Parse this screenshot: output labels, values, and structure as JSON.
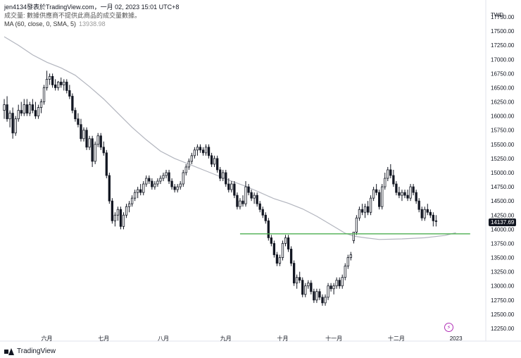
{
  "header": {
    "publisher_line": "jen4134發表於TradingView.com，一月 02, 2023 15:01 UTC+8",
    "volume_note": "成交量: 數據供應商不提供此商品的成交量數據。",
    "ma_label": "MA (60, close, 0, SMA, 5)",
    "ma_value": "13938.98"
  },
  "axis": {
    "currency": "TWD",
    "last_price": "14137.69"
  },
  "footer": {
    "brand": "TradingView"
  },
  "colors": {
    "candle": "#131722",
    "ma_line": "#b2b5be",
    "support_line": "#4caf50",
    "flash_icon": "#b02fb6"
  },
  "chart_data": {
    "type": "candlestick",
    "title": "",
    "xlabel": "",
    "ylabel": "TWD",
    "ylim": [
      12150,
      17800
    ],
    "y_ticks": [
      12250,
      12500,
      12750,
      13000,
      13250,
      13500,
      13750,
      14000,
      14250,
      14500,
      14750,
      15000,
      15250,
      15500,
      15750,
      16000,
      16250,
      16500,
      16750,
      17000,
      17250,
      17500,
      17750
    ],
    "y_tick_labels": [
      "12250.00",
      "12500.00",
      "12750.00",
      "13000.00",
      "13250.00",
      "13500.00",
      "13750.00",
      "14000.00",
      "14250.00",
      "14500.00",
      "14750.00",
      "15000.00",
      "15250.00",
      "15500.00",
      "15750.00",
      "16000.00",
      "16250.00",
      "16500.00",
      "16750.00",
      "17000.00",
      "17250.00",
      "17500.00",
      "17750.00"
    ],
    "x_months": [
      {
        "label": "六月",
        "index": 15
      },
      {
        "label": "七月",
        "index": 35
      },
      {
        "label": "八月",
        "index": 56
      },
      {
        "label": "九月",
        "index": 78
      },
      {
        "label": "十月",
        "index": 98
      },
      {
        "label": "十一月",
        "index": 116
      },
      {
        "label": "十二月",
        "index": 138
      },
      {
        "label": "2023",
        "index": 159
      }
    ],
    "bar_count": 170,
    "support_level": 13920,
    "support_start_index": 83,
    "candles": [
      {
        "o": 16100,
        "h": 16300,
        "l": 15950,
        "c": 16200
      },
      {
        "o": 16200,
        "h": 16350,
        "l": 15900,
        "c": 15950
      },
      {
        "o": 15950,
        "h": 16100,
        "l": 15800,
        "c": 16050
      },
      {
        "o": 16050,
        "h": 16150,
        "l": 15600,
        "c": 15700
      },
      {
        "o": 15700,
        "h": 16000,
        "l": 15650,
        "c": 15950
      },
      {
        "o": 15950,
        "h": 16200,
        "l": 15900,
        "c": 16100
      },
      {
        "o": 16100,
        "h": 16250,
        "l": 16000,
        "c": 16050
      },
      {
        "o": 16050,
        "h": 16300,
        "l": 16000,
        "c": 16200
      },
      {
        "o": 16200,
        "h": 16300,
        "l": 16000,
        "c": 16050
      },
      {
        "o": 16050,
        "h": 16250,
        "l": 16000,
        "c": 16200
      },
      {
        "o": 16200,
        "h": 16300,
        "l": 16050,
        "c": 16100
      },
      {
        "o": 16100,
        "h": 16250,
        "l": 15950,
        "c": 16000
      },
      {
        "o": 16000,
        "h": 16200,
        "l": 15950,
        "c": 16150
      },
      {
        "o": 16150,
        "h": 16300,
        "l": 16050,
        "c": 16250
      },
      {
        "o": 16250,
        "h": 16550,
        "l": 16200,
        "c": 16500
      },
      {
        "o": 16500,
        "h": 16800,
        "l": 16450,
        "c": 16650
      },
      {
        "o": 16650,
        "h": 16750,
        "l": 16550,
        "c": 16700
      },
      {
        "o": 16700,
        "h": 16750,
        "l": 16500,
        "c": 16550
      },
      {
        "o": 16550,
        "h": 16650,
        "l": 16450,
        "c": 16500
      },
      {
        "o": 16500,
        "h": 16620,
        "l": 16450,
        "c": 16600
      },
      {
        "o": 16600,
        "h": 16680,
        "l": 16500,
        "c": 16550
      },
      {
        "o": 16550,
        "h": 16650,
        "l": 16450,
        "c": 16600
      },
      {
        "o": 16600,
        "h": 16650,
        "l": 16400,
        "c": 16450
      },
      {
        "o": 16450,
        "h": 16550,
        "l": 16300,
        "c": 16350
      },
      {
        "o": 16350,
        "h": 16400,
        "l": 16050,
        "c": 16100
      },
      {
        "o": 16100,
        "h": 16150,
        "l": 15900,
        "c": 15950
      },
      {
        "o": 15950,
        "h": 16050,
        "l": 15800,
        "c": 15850
      },
      {
        "o": 15850,
        "h": 15950,
        "l": 15550,
        "c": 15600
      },
      {
        "o": 15600,
        "h": 15800,
        "l": 15550,
        "c": 15750
      },
      {
        "o": 15750,
        "h": 15800,
        "l": 15400,
        "c": 15450
      },
      {
        "o": 15450,
        "h": 15650,
        "l": 15400,
        "c": 15600
      },
      {
        "o": 15600,
        "h": 15650,
        "l": 15100,
        "c": 15200
      },
      {
        "o": 15200,
        "h": 15550,
        "l": 15150,
        "c": 15500
      },
      {
        "o": 15500,
        "h": 15700,
        "l": 15450,
        "c": 15650
      },
      {
        "o": 15650,
        "h": 15700,
        "l": 15400,
        "c": 15450
      },
      {
        "o": 15450,
        "h": 15550,
        "l": 15300,
        "c": 15350
      },
      {
        "o": 15350,
        "h": 15400,
        "l": 14900,
        "c": 14950
      },
      {
        "o": 14950,
        "h": 15000,
        "l": 14450,
        "c": 14500
      },
      {
        "o": 14500,
        "h": 14550,
        "l": 14100,
        "c": 14150
      },
      {
        "o": 14150,
        "h": 14300,
        "l": 14050,
        "c": 14250
      },
      {
        "o": 14250,
        "h": 14400,
        "l": 14150,
        "c": 14350
      },
      {
        "o": 14350,
        "h": 14400,
        "l": 14000,
        "c": 14050
      },
      {
        "o": 14050,
        "h": 14300,
        "l": 14000,
        "c": 14250
      },
      {
        "o": 14250,
        "h": 14450,
        "l": 14200,
        "c": 14400
      },
      {
        "o": 14400,
        "h": 14500,
        "l": 14300,
        "c": 14450
      },
      {
        "o": 14450,
        "h": 14600,
        "l": 14400,
        "c": 14550
      },
      {
        "o": 14550,
        "h": 14700,
        "l": 14500,
        "c": 14650
      },
      {
        "o": 14650,
        "h": 14750,
        "l": 14550,
        "c": 14700
      },
      {
        "o": 14700,
        "h": 14800,
        "l": 14600,
        "c": 14650
      },
      {
        "o": 14650,
        "h": 14850,
        "l": 14600,
        "c": 14800
      },
      {
        "o": 14800,
        "h": 14950,
        "l": 14750,
        "c": 14900
      },
      {
        "o": 14900,
        "h": 14950,
        "l": 14800,
        "c": 14850
      },
      {
        "o": 14850,
        "h": 14900,
        "l": 14700,
        "c": 14750
      },
      {
        "o": 14750,
        "h": 14850,
        "l": 14700,
        "c": 14800
      },
      {
        "o": 14800,
        "h": 14900,
        "l": 14750,
        "c": 14850
      },
      {
        "o": 14850,
        "h": 14950,
        "l": 14800,
        "c": 14900
      },
      {
        "o": 14900,
        "h": 15000,
        "l": 14850,
        "c": 14950
      },
      {
        "o": 14950,
        "h": 15050,
        "l": 14900,
        "c": 15000
      },
      {
        "o": 15000,
        "h": 15050,
        "l": 14800,
        "c": 14850
      },
      {
        "o": 14850,
        "h": 14900,
        "l": 14700,
        "c": 14750
      },
      {
        "o": 14750,
        "h": 14800,
        "l": 14650,
        "c": 14700
      },
      {
        "o": 14700,
        "h": 14800,
        "l": 14650,
        "c": 14750
      },
      {
        "o": 14750,
        "h": 14850,
        "l": 14700,
        "c": 14800
      },
      {
        "o": 14800,
        "h": 15050,
        "l": 14750,
        "c": 15000
      },
      {
        "o": 15000,
        "h": 15150,
        "l": 14950,
        "c": 15100
      },
      {
        "o": 15100,
        "h": 15250,
        "l": 15050,
        "c": 15200
      },
      {
        "o": 15200,
        "h": 15350,
        "l": 15150,
        "c": 15300
      },
      {
        "o": 15300,
        "h": 15450,
        "l": 15250,
        "c": 15400
      },
      {
        "o": 15400,
        "h": 15500,
        "l": 15300,
        "c": 15450
      },
      {
        "o": 15450,
        "h": 15500,
        "l": 15350,
        "c": 15400
      },
      {
        "o": 15400,
        "h": 15450,
        "l": 15300,
        "c": 15350
      },
      {
        "o": 15350,
        "h": 15500,
        "l": 15300,
        "c": 15450
      },
      {
        "o": 15450,
        "h": 15500,
        "l": 15250,
        "c": 15300
      },
      {
        "o": 15300,
        "h": 15350,
        "l": 15100,
        "c": 15150
      },
      {
        "o": 15150,
        "h": 15300,
        "l": 15100,
        "c": 15250
      },
      {
        "o": 15250,
        "h": 15300,
        "l": 15000,
        "c": 15050
      },
      {
        "o": 15050,
        "h": 15100,
        "l": 14850,
        "c": 14900
      },
      {
        "o": 14900,
        "h": 15050,
        "l": 14850,
        "c": 15000
      },
      {
        "o": 15000,
        "h": 15050,
        "l": 14750,
        "c": 14800
      },
      {
        "o": 14800,
        "h": 14900,
        "l": 14650,
        "c": 14700
      },
      {
        "o": 14700,
        "h": 14850,
        "l": 14650,
        "c": 14800
      },
      {
        "o": 14800,
        "h": 14850,
        "l": 14550,
        "c": 14600
      },
      {
        "o": 14600,
        "h": 14650,
        "l": 14350,
        "c": 14400
      },
      {
        "o": 14400,
        "h": 14550,
        "l": 14350,
        "c": 14500
      },
      {
        "o": 14500,
        "h": 14600,
        "l": 14400,
        "c": 14450
      },
      {
        "o": 14450,
        "h": 14850,
        "l": 14400,
        "c": 14750
      },
      {
        "o": 14750,
        "h": 14800,
        "l": 14600,
        "c": 14650
      },
      {
        "o": 14650,
        "h": 14700,
        "l": 14500,
        "c": 14550
      },
      {
        "o": 14550,
        "h": 14650,
        "l": 14450,
        "c": 14600
      },
      {
        "o": 14600,
        "h": 14650,
        "l": 14400,
        "c": 14450
      },
      {
        "o": 14450,
        "h": 14500,
        "l": 14300,
        "c": 14350
      },
      {
        "o": 14350,
        "h": 14400,
        "l": 14200,
        "c": 14250
      },
      {
        "o": 14250,
        "h": 14300,
        "l": 14100,
        "c": 14150
      },
      {
        "o": 14150,
        "h": 14200,
        "l": 13800,
        "c": 13850
      },
      {
        "o": 13850,
        "h": 13900,
        "l": 13700,
        "c": 13750
      },
      {
        "o": 13750,
        "h": 13800,
        "l": 13500,
        "c": 13550
      },
      {
        "o": 13550,
        "h": 13600,
        "l": 13350,
        "c": 13400
      },
      {
        "o": 13400,
        "h": 13550,
        "l": 13350,
        "c": 13500
      },
      {
        "o": 13500,
        "h": 13800,
        "l": 13450,
        "c": 13750
      },
      {
        "o": 13750,
        "h": 13900,
        "l": 13700,
        "c": 13850
      },
      {
        "o": 13850,
        "h": 13900,
        "l": 13600,
        "c": 13650
      },
      {
        "o": 13650,
        "h": 13700,
        "l": 13350,
        "c": 13400
      },
      {
        "o": 13400,
        "h": 13450,
        "l": 13000,
        "c": 13050
      },
      {
        "o": 13050,
        "h": 13200,
        "l": 12950,
        "c": 13150
      },
      {
        "o": 13150,
        "h": 13250,
        "l": 13050,
        "c": 13100
      },
      {
        "o": 13100,
        "h": 13150,
        "l": 12800,
        "c": 12850
      },
      {
        "o": 12850,
        "h": 13050,
        "l": 12800,
        "c": 13000
      },
      {
        "o": 13000,
        "h": 13100,
        "l": 12950,
        "c": 13050
      },
      {
        "o": 13050,
        "h": 13100,
        "l": 12850,
        "c": 12900
      },
      {
        "o": 12900,
        "h": 12950,
        "l": 12700,
        "c": 12750
      },
      {
        "o": 12750,
        "h": 12950,
        "l": 12700,
        "c": 12900
      },
      {
        "o": 12900,
        "h": 12950,
        "l": 12750,
        "c": 12800
      },
      {
        "o": 12800,
        "h": 12850,
        "l": 12650,
        "c": 12700
      },
      {
        "o": 12700,
        "h": 12850,
        "l": 12650,
        "c": 12800
      },
      {
        "o": 12800,
        "h": 13050,
        "l": 12750,
        "c": 13000
      },
      {
        "o": 13000,
        "h": 13050,
        "l": 12900,
        "c": 12950
      },
      {
        "o": 12950,
        "h": 13050,
        "l": 12850,
        "c": 13000
      },
      {
        "o": 13000,
        "h": 13150,
        "l": 12950,
        "c": 13100
      },
      {
        "o": 13100,
        "h": 13150,
        "l": 12950,
        "c": 13000
      },
      {
        "o": 13000,
        "h": 13200,
        "l": 12950,
        "c": 13150
      },
      {
        "o": 13150,
        "h": 13400,
        "l": 13100,
        "c": 13350
      },
      {
        "o": 13350,
        "h": 13550,
        "l": 13300,
        "c": 13500
      },
      {
        "o": 13500,
        "h": 13600,
        "l": 13450,
        "c": 13550
      },
      {
        "o": 13800,
        "h": 13950,
        "l": 13750,
        "c": 13950
      },
      {
        "o": 13950,
        "h": 14250,
        "l": 13900,
        "c": 14200
      },
      {
        "o": 14200,
        "h": 14400,
        "l": 14150,
        "c": 14350
      },
      {
        "o": 14350,
        "h": 14450,
        "l": 14250,
        "c": 14300
      },
      {
        "o": 14300,
        "h": 14450,
        "l": 14200,
        "c": 14400
      },
      {
        "o": 14400,
        "h": 14500,
        "l": 14250,
        "c": 14300
      },
      {
        "o": 14300,
        "h": 14600,
        "l": 14250,
        "c": 14550
      },
      {
        "o": 14550,
        "h": 14750,
        "l": 14500,
        "c": 14700
      },
      {
        "o": 14700,
        "h": 14800,
        "l": 14600,
        "c": 14650
      },
      {
        "o": 14650,
        "h": 14700,
        "l": 14350,
        "c": 14400
      },
      {
        "o": 14400,
        "h": 14800,
        "l": 14350,
        "c": 14750
      },
      {
        "o": 14750,
        "h": 15000,
        "l": 14700,
        "c": 14900
      },
      {
        "o": 14900,
        "h": 15100,
        "l": 14850,
        "c": 15050
      },
      {
        "o": 15050,
        "h": 15150,
        "l": 14900,
        "c": 14950
      },
      {
        "o": 14950,
        "h": 15050,
        "l": 14750,
        "c": 14800
      },
      {
        "o": 14800,
        "h": 14850,
        "l": 14600,
        "c": 14650
      },
      {
        "o": 14650,
        "h": 14750,
        "l": 14550,
        "c": 14600
      },
      {
        "o": 14600,
        "h": 14700,
        "l": 14500,
        "c": 14650
      },
      {
        "o": 14650,
        "h": 14700,
        "l": 14550,
        "c": 14600
      },
      {
        "o": 14600,
        "h": 14700,
        "l": 14500,
        "c": 14550
      },
      {
        "o": 14550,
        "h": 14800,
        "l": 14500,
        "c": 14750
      },
      {
        "o": 14750,
        "h": 14800,
        "l": 14600,
        "c": 14650
      },
      {
        "o": 14650,
        "h": 14700,
        "l": 14450,
        "c": 14500
      },
      {
        "o": 14500,
        "h": 14550,
        "l": 14300,
        "c": 14350
      },
      {
        "o": 14350,
        "h": 14400,
        "l": 14150,
        "c": 14200
      },
      {
        "o": 14200,
        "h": 14400,
        "l": 14150,
        "c": 14350
      },
      {
        "o": 14350,
        "h": 14450,
        "l": 14250,
        "c": 14300
      },
      {
        "o": 14300,
        "h": 14350,
        "l": 14200,
        "c": 14250
      },
      {
        "o": 14250,
        "h": 14300,
        "l": 14050,
        "c": 14150
      },
      {
        "o": 14150,
        "h": 14250,
        "l": 14050,
        "c": 14137.69
      }
    ],
    "ma": [
      {
        "i": 0,
        "v": 17400
      },
      {
        "i": 5,
        "v": 17250
      },
      {
        "i": 10,
        "v": 17080
      },
      {
        "i": 15,
        "v": 16950
      },
      {
        "i": 20,
        "v": 16850
      },
      {
        "i": 25,
        "v": 16720
      },
      {
        "i": 30,
        "v": 16520
      },
      {
        "i": 35,
        "v": 16300
      },
      {
        "i": 40,
        "v": 16050
      },
      {
        "i": 45,
        "v": 15800
      },
      {
        "i": 50,
        "v": 15580
      },
      {
        "i": 55,
        "v": 15380
      },
      {
        "i": 60,
        "v": 15250
      },
      {
        "i": 65,
        "v": 15150
      },
      {
        "i": 70,
        "v": 15050
      },
      {
        "i": 75,
        "v": 14950
      },
      {
        "i": 80,
        "v": 14850
      },
      {
        "i": 85,
        "v": 14760
      },
      {
        "i": 90,
        "v": 14650
      },
      {
        "i": 95,
        "v": 14540
      },
      {
        "i": 100,
        "v": 14460
      },
      {
        "i": 105,
        "v": 14360
      },
      {
        "i": 110,
        "v": 14230
      },
      {
        "i": 115,
        "v": 14080
      },
      {
        "i": 120,
        "v": 13930
      },
      {
        "i": 123,
        "v": 13880
      },
      {
        "i": 127,
        "v": 13850
      },
      {
        "i": 132,
        "v": 13820
      },
      {
        "i": 140,
        "v": 13830
      },
      {
        "i": 148,
        "v": 13850
      },
      {
        "i": 155,
        "v": 13890
      },
      {
        "i": 159,
        "v": 13938.98
      }
    ]
  }
}
